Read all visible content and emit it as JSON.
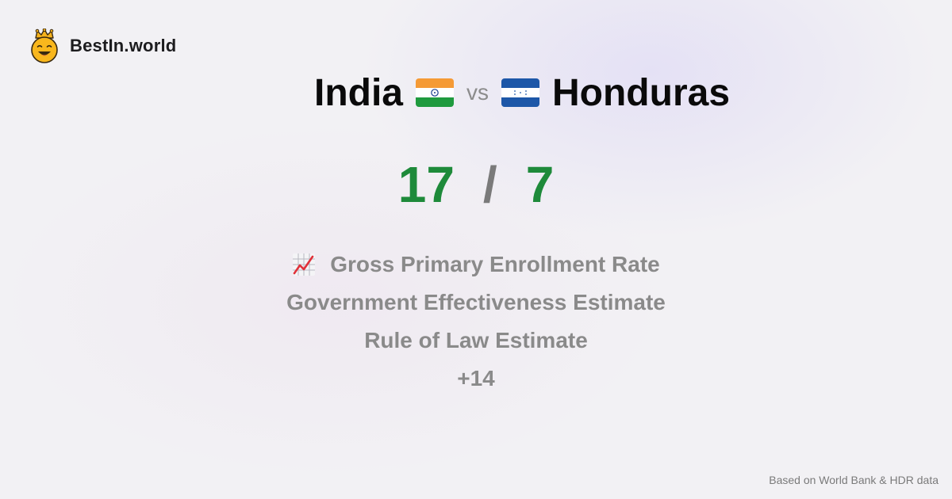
{
  "brand": {
    "name": "BestIn.world"
  },
  "comparison": {
    "left_country": "India",
    "vs_label": "vs",
    "right_country": "Honduras"
  },
  "score": {
    "left": "17",
    "separator": "/",
    "right": "7"
  },
  "metrics": [
    "Gross Primary Enrollment Rate",
    "Government Effectiveness Estimate",
    "Rule of Law Estimate",
    "+14"
  ],
  "footer": {
    "source_note": "Based on World Bank & HDR data"
  },
  "icons": {
    "brand_logo": "crowned-smiley-icon",
    "india_flag": "india-flag-icon",
    "honduras_flag": "honduras-flag-icon",
    "metric_icon": "chart-increasing-icon"
  },
  "colors": {
    "score_green": "#1e8a3a",
    "muted_gray": "#8a8a8a",
    "text_dark": "#0a0a0a"
  }
}
